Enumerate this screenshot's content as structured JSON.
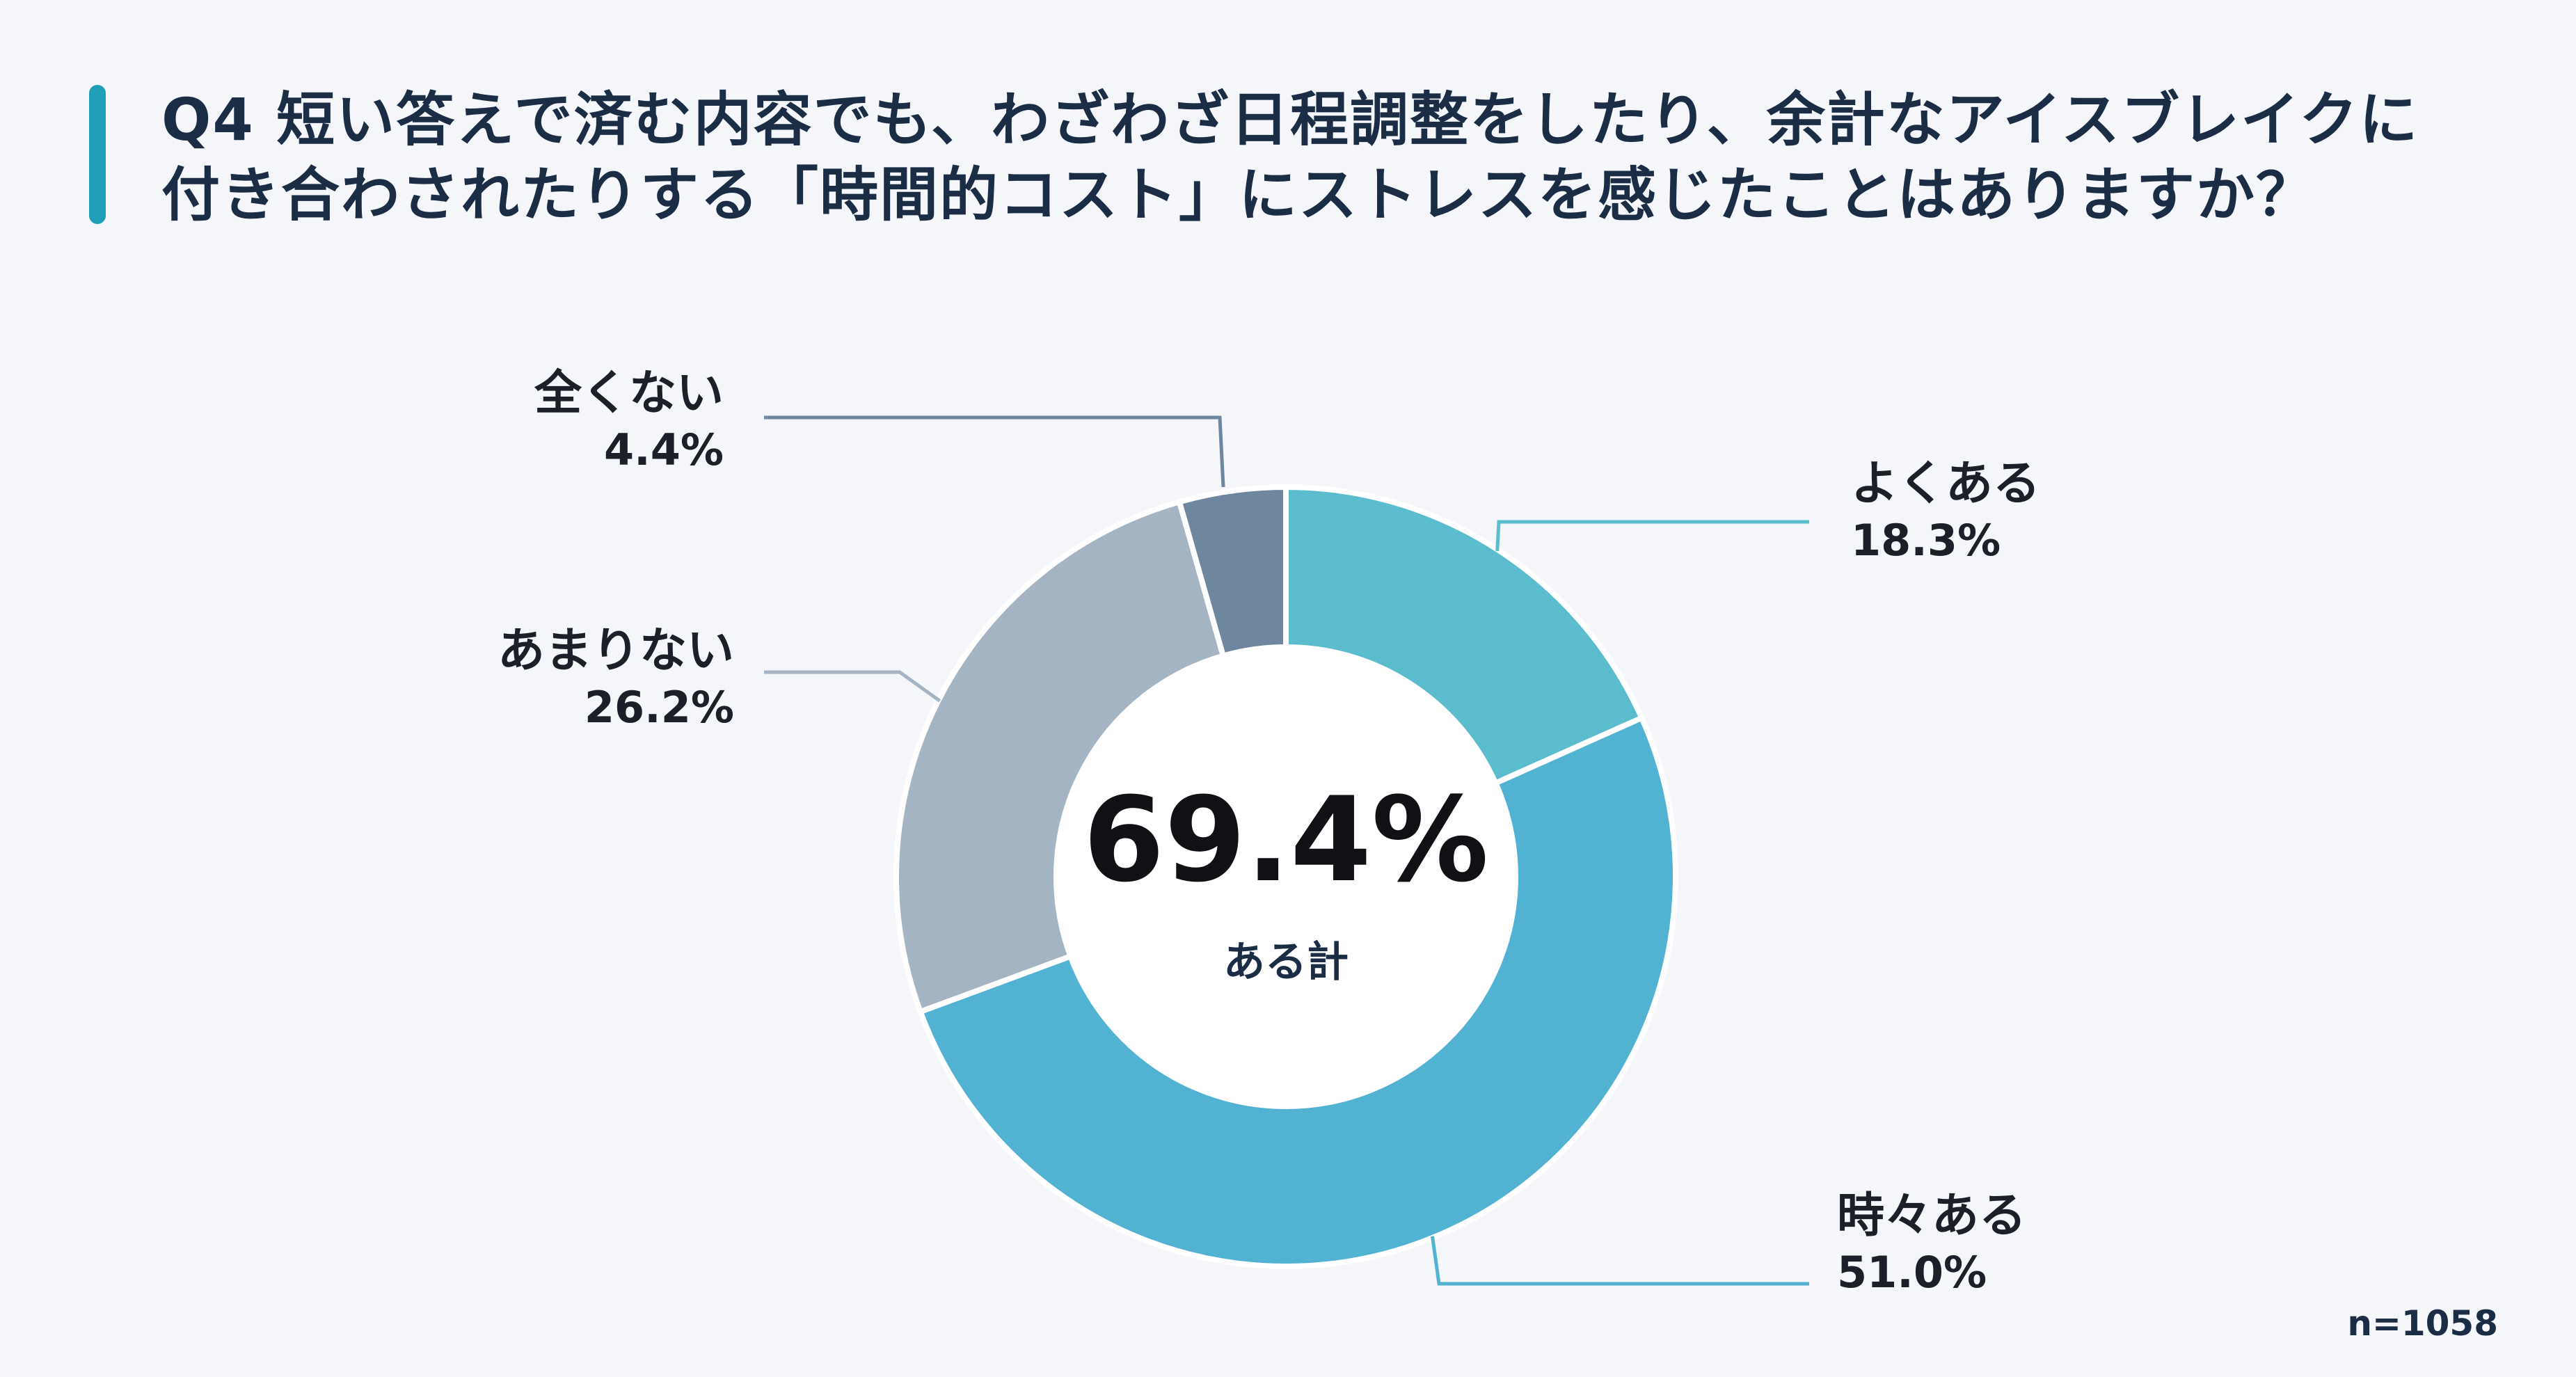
{
  "title": {
    "line1": "Q4  短い答えで済む内容でも、わざわざ日程調整をしたり、余計なアイスブレイクに",
    "line2": "付き合わされたりする「時間的コスト」にストレスを感じたことはありますか？"
  },
  "chart_data": {
    "type": "pie",
    "categories": [
      "よくある",
      "時々ある",
      "あまりない",
      "全くない"
    ],
    "values_display": [
      "18.3%",
      "51.0%",
      "26.2%",
      "4.4%"
    ],
    "values": [
      18.3,
      51.0,
      26.2,
      4.4
    ],
    "colors": [
      "#5bbccd",
      "#52b2d1",
      "#a5b4c2",
      "#6f879e"
    ],
    "center": {
      "value": "69.4%",
      "label": "ある計"
    }
  },
  "sample_size": "n=1058"
}
